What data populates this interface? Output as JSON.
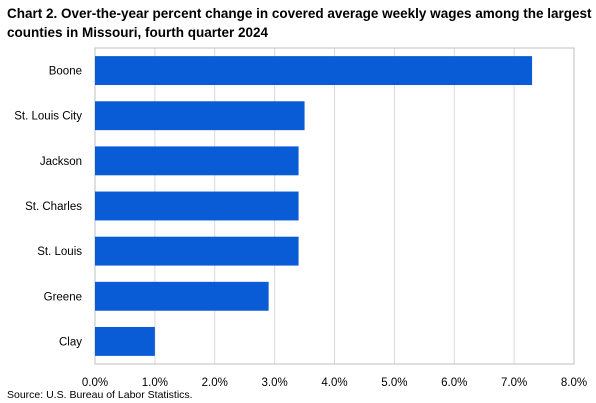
{
  "title": "Chart 2. Over-the-year percent change in covered average weekly wages among the largest counties in Missouri, fourth quarter 2024",
  "source": "Source: U.S. Bureau of Labor Statistics.",
  "colors": {
    "bar": "#0a5bd6",
    "grid": "#d9d9d9",
    "axis": "#bfbfbf"
  },
  "chart_data": {
    "type": "bar",
    "orientation": "horizontal",
    "title": "Chart 2. Over-the-year percent change in covered average weekly wages among the largest counties in Missouri, fourth quarter 2024",
    "xlabel": "",
    "ylabel": "",
    "categories": [
      "Boone",
      "St. Louis City",
      "Jackson",
      "St. Charles",
      "St. Louis",
      "Greene",
      "Clay"
    ],
    "values": [
      7.3,
      3.5,
      3.4,
      3.4,
      3.4,
      2.9,
      1.0
    ],
    "xlim": [
      0,
      8
    ],
    "ticks": [
      "0.0%",
      "1.0%",
      "2.0%",
      "3.0%",
      "4.0%",
      "5.0%",
      "6.0%",
      "7.0%",
      "8.0%"
    ],
    "grid": true,
    "legend": "none"
  }
}
